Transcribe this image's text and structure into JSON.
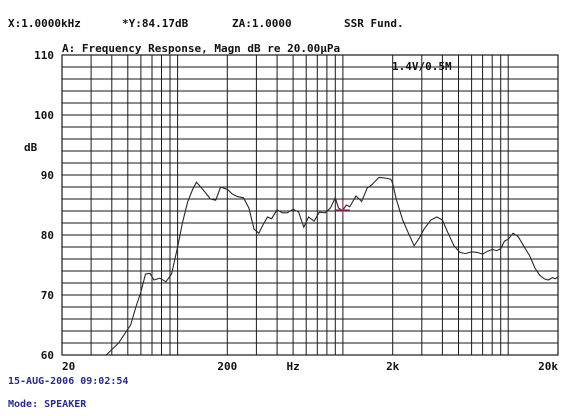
{
  "header": {
    "x_readout": "X:1.0000kHz",
    "y_readout": "*Y:84.17dB",
    "za_readout": "ZA:1.0000",
    "mode_label": "SSR Fund.",
    "scale_label": "1.4V/0.5M"
  },
  "footer": {
    "timestamp": "15-AUG-2006 09:02:54",
    "mode": "Mode: SPEAKER"
  },
  "chart_data": {
    "type": "line",
    "title": "A: Frequency Response, Magn dB re 20.00μPa",
    "xlabel": "Hz",
    "ylabel": "dB",
    "x_scale": "log",
    "xlim": [
      20,
      20000
    ],
    "ylim": [
      60,
      110
    ],
    "x_tick_labels": [
      "20",
      "200",
      "Hz",
      "2k",
      "20k"
    ],
    "y_tick_labels": [
      "110",
      "100",
      "90",
      "80",
      "70",
      "60"
    ],
    "y_ticks": [
      110,
      100,
      90,
      80,
      70,
      60
    ],
    "grid": true,
    "legend": "none",
    "cursor": {
      "x": 1000,
      "y": 84.17
    },
    "series": [
      {
        "x": [
          37,
          44,
          52,
          56,
          60,
          64,
          68,
          72,
          78,
          85,
          92,
          100,
          107,
          115,
          123,
          130,
          138,
          148,
          158,
          170,
          182,
          200,
          215,
          230,
          250,
          270,
          290,
          310,
          330,
          350,
          370,
          400,
          430,
          460,
          500,
          540,
          580,
          620,
          670,
          720,
          780,
          840,
          900,
          940,
          980,
          1000,
          1050,
          1100,
          1200,
          1300,
          1400,
          1500,
          1650,
          1800,
          1950,
          2000,
          2100,
          2300,
          2500,
          2700,
          2900,
          3100,
          3400,
          3700,
          4000,
          4300,
          4700,
          5100,
          5500,
          6000,
          6500,
          7000,
          7500,
          8000,
          8500,
          9000,
          9500,
          10000,
          10700,
          11500,
          12500,
          13500,
          14500,
          15500,
          16500,
          17500,
          18500,
          19200,
          20000
        ],
        "y": [
          60,
          62,
          65,
          68,
          70.5,
          73.5,
          73.6,
          72.5,
          72.8,
          72.2,
          73.5,
          78,
          82,
          85.5,
          87.5,
          88.8,
          88,
          87,
          86,
          85.8,
          88,
          87.6,
          86.8,
          86.4,
          86.2,
          84.5,
          81,
          80.3,
          81.8,
          83,
          82.7,
          84.2,
          83.7,
          83.7,
          84.3,
          83.8,
          81.3,
          83,
          82.3,
          83.8,
          83.7,
          84.5,
          86.2,
          84.5,
          84.2,
          84.17,
          85,
          84.7,
          86.5,
          85.6,
          87.8,
          88.4,
          89.6,
          89.5,
          89.3,
          88.6,
          86,
          82.5,
          80.2,
          78.2,
          79.5,
          81,
          82.5,
          83,
          82.5,
          80.5,
          78.2,
          77.1,
          76.9,
          77.2,
          77.1,
          76.8,
          77.3,
          77.6,
          77.4,
          77.7,
          79,
          79.3,
          80.3,
          79.7,
          78,
          76.5,
          74.5,
          73.3,
          72.7,
          72.5,
          72.9,
          72.7,
          73
        ]
      }
    ]
  }
}
